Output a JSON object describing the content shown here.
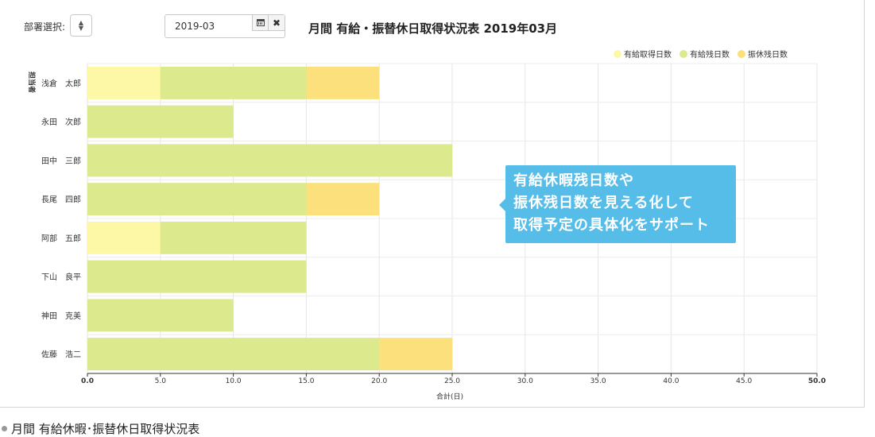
{
  "toolbar": {
    "dept_label": "部署選択:",
    "month_value": "2019-03"
  },
  "chart_data": {
    "type": "bar",
    "orientation": "horizontal",
    "stacked": true,
    "title": "月間 有給・振替休日取得状況表 2019年03月",
    "ylabel": "担当者",
    "xlabel": "合計(日)",
    "xlim": [
      0,
      50
    ],
    "xticks": [
      "0.0",
      "5.0",
      "10.0",
      "15.0",
      "20.0",
      "25.0",
      "30.0",
      "35.0",
      "40.0",
      "45.0",
      "50.0"
    ],
    "grid": true,
    "legend_position": "top-right",
    "categories": [
      "浅倉　太郎",
      "永田　次郎",
      "田中　三郎",
      "長尾　四郎",
      "阿部　五郎",
      "下山　良平",
      "神田　克美",
      "佐藤　浩二"
    ],
    "series": [
      {
        "name": "有給取得日数",
        "color": "#fdf8a6",
        "values": [
          5,
          0,
          0,
          0,
          5,
          0,
          0,
          0
        ]
      },
      {
        "name": "有給残日数",
        "color": "#dce98d",
        "values": [
          10,
          10,
          25,
          15,
          10,
          15,
          10,
          20
        ]
      },
      {
        "name": "振休残日数",
        "color": "#fbe07c",
        "values": [
          5,
          0,
          0,
          5,
          0,
          0,
          0,
          5
        ]
      }
    ]
  },
  "callout": {
    "lines": [
      "有給休暇残日数や",
      "振休残日数を見える化して",
      "取得予定の具体化をサポート"
    ]
  },
  "caption": "月間 有給休暇･振替休日取得状況表"
}
